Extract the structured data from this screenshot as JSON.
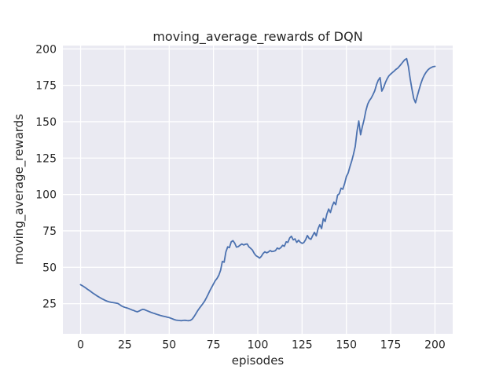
{
  "figure": {
    "title": "moving_average_rewards of DQN",
    "xlabel": "episodes",
    "ylabel": "moving_average_rewards"
  },
  "chart_data": {
    "type": "line",
    "title": "moving_average_rewards of DQN",
    "xlabel": "episodes",
    "ylabel": "moving_average_rewards",
    "grid": true,
    "legend": false,
    "style": "seaborn-darkgrid",
    "plot_bg": "#eaeaf2",
    "grid_color": "#ffffff",
    "line_color": "#4c72b0",
    "text_color": "#262626",
    "xlim": [
      -10,
      210
    ],
    "ylim": [
      4.3,
      202.3
    ],
    "xticks": [
      0,
      25,
      50,
      75,
      100,
      125,
      150,
      175,
      200
    ],
    "yticks": [
      25,
      50,
      75,
      100,
      125,
      150,
      175,
      200
    ],
    "series": [
      {
        "name": "moving_average_rewards",
        "x_start": 0,
        "x_step": 1,
        "values": [
          38.0,
          37.3,
          36.5,
          35.7,
          34.8,
          34.0,
          33.1,
          32.2,
          31.4,
          30.6,
          29.8,
          29.1,
          28.4,
          27.8,
          27.2,
          26.7,
          26.3,
          26.0,
          25.8,
          25.6,
          25.4,
          25.1,
          24.4,
          23.5,
          22.9,
          22.5,
          22.1,
          21.7,
          21.2,
          20.7,
          20.3,
          19.8,
          19.4,
          19.9,
          20.6,
          21.1,
          20.9,
          20.4,
          19.9,
          19.4,
          18.9,
          18.5,
          18.1,
          17.7,
          17.3,
          16.9,
          16.6,
          16.3,
          16.0,
          15.7,
          15.4,
          15.0,
          14.5,
          14.0,
          13.7,
          13.5,
          13.4,
          13.3,
          13.5,
          13.6,
          13.4,
          13.3,
          13.5,
          14.4,
          16.0,
          18.0,
          20.0,
          21.8,
          23.4,
          25.0,
          26.8,
          29.0,
          31.5,
          34.0,
          36.3,
          38.5,
          40.8,
          42.3,
          44.5,
          48.0,
          54.0,
          53.5,
          60.5,
          64.0,
          63.5,
          67.5,
          68.3,
          66.5,
          63.8,
          64.2,
          65.2,
          66.0,
          65.3,
          65.8,
          66.0,
          64.0,
          63.0,
          61.8,
          59.5,
          58.0,
          57.2,
          56.3,
          57.5,
          59.5,
          60.6,
          59.9,
          60.5,
          61.5,
          60.8,
          61.0,
          61.5,
          63.2,
          62.6,
          63.5,
          65.1,
          64.4,
          67.5,
          67.1,
          70.2,
          71.3,
          68.8,
          69.5,
          67.1,
          68.6,
          67.2,
          66.4,
          67.0,
          69.0,
          71.8,
          69.8,
          69.2,
          71.8,
          74.0,
          71.6,
          76.5,
          79.3,
          76.6,
          83.5,
          81.4,
          86.5,
          90.0,
          87.6,
          92.0,
          94.8,
          93.0,
          99.5,
          100.5,
          104.3,
          103.6,
          107.5,
          112.3,
          114.8,
          119.0,
          123.0,
          127.5,
          133.0,
          143.5,
          150.5,
          141.0,
          146.5,
          151.5,
          157.5,
          162.0,
          164.5,
          166.2,
          168.5,
          171.2,
          175.5,
          178.5,
          180.3,
          171.0,
          173.5,
          176.8,
          179.5,
          181.5,
          182.7,
          183.8,
          184.8,
          186.0,
          186.8,
          188.2,
          189.6,
          191.2,
          192.6,
          193.3,
          188.0,
          179.5,
          172.5,
          166.0,
          163.0,
          167.5,
          172.0,
          176.0,
          179.5,
          182.0,
          184.0,
          185.5,
          186.6,
          187.3,
          187.8,
          188.0
        ]
      }
    ]
  }
}
